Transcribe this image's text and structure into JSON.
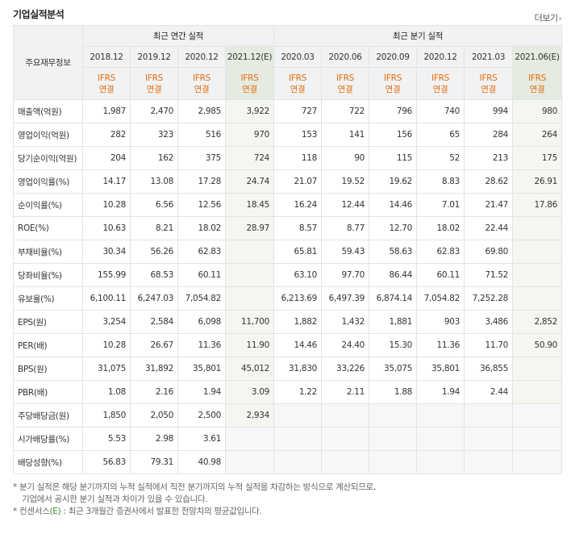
{
  "header": {
    "title": "기업실적분석",
    "more_label": "더보기",
    "more_icon": "chevron-right-icon"
  },
  "table": {
    "row_header_title": "주요재무정보",
    "annual_group": "최근 연간 실적",
    "quarter_group": "최근 분기 실적",
    "periods": [
      {
        "label": "2018.12"
      },
      {
        "label": "2019.12"
      },
      {
        "label": "2020.12"
      },
      {
        "label": "2021.12(E)"
      },
      {
        "label": "2020.03"
      },
      {
        "label": "2020.06"
      },
      {
        "label": "2020.09"
      },
      {
        "label": "2020.12"
      },
      {
        "label": "2021.03"
      },
      {
        "label": "2021.06(E)"
      }
    ],
    "ifrs_line1": "IFRS",
    "ifrs_line2": "연결",
    "rows": [
      {
        "label": "매출액(억원)",
        "values": [
          "1,987",
          "2,470",
          "2,985",
          "3,922",
          "727",
          "722",
          "796",
          "740",
          "994",
          "980"
        ]
      },
      {
        "label": "영업이익(억원)",
        "values": [
          "282",
          "323",
          "516",
          "970",
          "153",
          "141",
          "156",
          "65",
          "284",
          "264"
        ]
      },
      {
        "label": "당기순이익(억원)",
        "values": [
          "204",
          "162",
          "375",
          "724",
          "118",
          "90",
          "115",
          "52",
          "213",
          "175"
        ]
      },
      {
        "label": "영업이익률(%)",
        "values": [
          "14.17",
          "13.08",
          "17.28",
          "24.74",
          "21.07",
          "19.52",
          "19.62",
          "8.83",
          "28.62",
          "26.91"
        ]
      },
      {
        "label": "순이익률(%)",
        "values": [
          "10.28",
          "6.56",
          "12.56",
          "18.45",
          "16.24",
          "12.44",
          "14.46",
          "7.01",
          "21.47",
          "17.86"
        ]
      },
      {
        "label": "ROE(%)",
        "values": [
          "10.63",
          "8.21",
          "18.02",
          "28.97",
          "8.57",
          "8.77",
          "12.70",
          "18.02",
          "22.44",
          ""
        ]
      },
      {
        "label": "부채비율(%)",
        "values": [
          "30.34",
          "56.26",
          "62.83",
          "",
          "65.81",
          "59.43",
          "58.63",
          "62.83",
          "69.80",
          ""
        ]
      },
      {
        "label": "당좌비율(%)",
        "values": [
          "155.99",
          "68.53",
          "60.11",
          "",
          "63.10",
          "97.70",
          "86.44",
          "60.11",
          "71.52",
          ""
        ]
      },
      {
        "label": "유보율(%)",
        "values": [
          "6,100.11",
          "6,247.03",
          "7,054.82",
          "",
          "6,213.69",
          "6,497.39",
          "6,874.14",
          "7,054.82",
          "7,252.28",
          ""
        ]
      },
      {
        "label": "EPS(원)",
        "values": [
          "3,254",
          "2,584",
          "6,098",
          "11,700",
          "1,882",
          "1,432",
          "1,881",
          "903",
          "3,486",
          "2,852"
        ]
      },
      {
        "label": "PER(배)",
        "values": [
          "10.28",
          "26.67",
          "11.36",
          "11.90",
          "14.46",
          "24.40",
          "15.30",
          "11.36",
          "11.70",
          "50.90"
        ]
      },
      {
        "label": "BPS(원)",
        "values": [
          "31,075",
          "31,892",
          "35,801",
          "45,012",
          "31,830",
          "33,226",
          "35,075",
          "35,801",
          "36,855",
          ""
        ]
      },
      {
        "label": "PBR(배)",
        "values": [
          "1.08",
          "2.16",
          "1.94",
          "3.09",
          "1.22",
          "2.11",
          "1.88",
          "1.94",
          "2.44",
          ""
        ]
      },
      {
        "label": "주당배당금(원)",
        "values": [
          "1,850",
          "2,050",
          "2,500",
          "2,934",
          "",
          "",
          "",
          "",
          "",
          ""
        ]
      },
      {
        "label": "시가배당률(%)",
        "values": [
          "5.53",
          "2.98",
          "3.61",
          "",
          "",
          "",
          "",
          "",
          "",
          ""
        ]
      },
      {
        "label": "배당성향(%)",
        "values": [
          "56.83",
          "79.31",
          "40.98",
          "",
          "",
          "",
          "",
          "",
          "",
          ""
        ]
      }
    ]
  },
  "notes": {
    "line1": "* 분기 실적은 해당 분기까지의 누적 실적에서 직전 분기까지의 누적 실적을 차감하는 방식으로 계산되므로,",
    "line2": "기업에서 공시한 분기 실적과 차이가 있을 수 있습니다.",
    "line3_prefix": "* 컨센서스",
    "line3_e": "(E)",
    "line3_suffix": " : 최근 3개월간 증권사에서 발표한 전망치의 평균값입니다."
  }
}
